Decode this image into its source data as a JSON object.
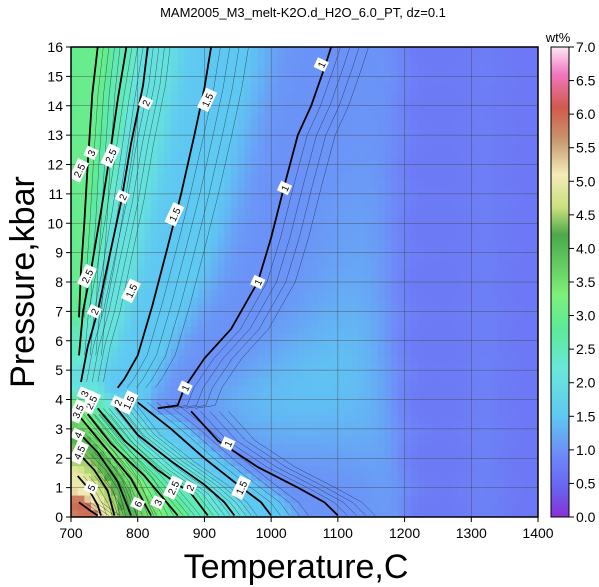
{
  "chart_data": {
    "type": "heatmap",
    "title": "MAM2005_M3_melt-K2O.d_H2O_6.0_PT, dz=0.1",
    "xlabel": "Temperature,C",
    "ylabel": "Pressure,kbar",
    "xlim": [
      700,
      1400
    ],
    "ylim": [
      0,
      16
    ],
    "xticks": [
      700,
      800,
      900,
      1000,
      1100,
      1200,
      1300,
      1400
    ],
    "yticks": [
      0,
      1,
      2,
      3,
      4,
      5,
      6,
      7,
      8,
      9,
      10,
      11,
      12,
      13,
      14,
      15,
      16
    ],
    "grid": true,
    "colorbar": {
      "label": "wt%",
      "range": [
        0,
        7
      ],
      "ticks": [
        "0.0",
        "0.5",
        "1.0",
        "1.5",
        "2.0",
        "2.5",
        "3.0",
        "3.5",
        "4.0",
        "4.5",
        "5.0",
        "5.5",
        "6.0",
        "6.5",
        "7.0"
      ],
      "stops": [
        {
          "v": 0.0,
          "c": "#8b2fd8"
        },
        {
          "v": 0.4,
          "c": "#6a60f0"
        },
        {
          "v": 0.9,
          "c": "#6e88f8"
        },
        {
          "v": 1.5,
          "c": "#5fc8f2"
        },
        {
          "v": 2.2,
          "c": "#68e8d8"
        },
        {
          "v": 2.8,
          "c": "#5cea98"
        },
        {
          "v": 3.3,
          "c": "#7df07a"
        },
        {
          "v": 4.2,
          "c": "#4ba84a"
        },
        {
          "v": 4.6,
          "c": "#c8e07c"
        },
        {
          "v": 5.1,
          "c": "#f4ecb8"
        },
        {
          "v": 5.6,
          "c": "#c89a6e"
        },
        {
          "v": 6.1,
          "c": "#d2584c"
        },
        {
          "v": 6.6,
          "c": "#f078c0"
        },
        {
          "v": 7.0,
          "c": "#fde6f6"
        }
      ]
    },
    "labeled_contours": [
      {
        "level": 1,
        "label": "1",
        "points": [
          [
            1090,
            16
          ],
          [
            1080,
            15.3
          ],
          [
            1060,
            14
          ],
          [
            1040,
            13
          ],
          [
            1020,
            11.3
          ],
          [
            1000,
            9.5
          ],
          [
            980,
            8
          ],
          [
            940,
            6.4
          ],
          [
            900,
            5.4
          ],
          [
            870,
            4.4
          ],
          [
            860,
            3.8
          ],
          [
            830,
            3.7
          ]
        ]
      },
      {
        "level": 1,
        "label": "1",
        "points": [
          [
            880,
            3.6
          ],
          [
            920,
            2.6
          ],
          [
            980,
            1.7
          ],
          [
            1040,
            1.0
          ],
          [
            1080,
            0.5
          ],
          [
            1100,
            0.05
          ]
        ]
      },
      {
        "level": 1.5,
        "label": "1.5",
        "points": [
          [
            910,
            16
          ],
          [
            900,
            14.6
          ],
          [
            885,
            13
          ],
          [
            865,
            11
          ],
          [
            845,
            9.2
          ],
          [
            822,
            7.2
          ],
          [
            800,
            5.5
          ],
          [
            780,
            4.7
          ],
          [
            770,
            4.4
          ]
        ]
      },
      {
        "level": 1.5,
        "label": "1.5",
        "points": [
          [
            800,
            3.9
          ],
          [
            850,
            3.0
          ],
          [
            900,
            2.0
          ],
          [
            950,
            1.1
          ],
          [
            985,
            0.5
          ],
          [
            1000,
            0.05
          ]
        ]
      },
      {
        "level": 2,
        "label": "2",
        "points": [
          [
            815,
            16
          ],
          [
            808,
            14.7
          ],
          [
            790,
            12.7
          ],
          [
            775,
            10.7
          ],
          [
            755,
            8.6
          ],
          [
            740,
            7.0
          ],
          [
            725,
            5.8
          ],
          [
            715,
            4.6
          ]
        ]
      },
      {
        "level": 2,
        "label": "2",
        "points": [
          [
            765,
            3.8
          ],
          [
            800,
            2.8
          ],
          [
            850,
            1.9
          ],
          [
            900,
            1.1
          ],
          [
            930,
            0.5
          ],
          [
            945,
            0.05
          ]
        ]
      },
      {
        "level": 2.5,
        "label": "2.5",
        "points": [
          [
            783,
            16
          ],
          [
            770,
            14.2
          ],
          [
            758,
            12.3
          ],
          [
            745,
            10.4
          ],
          [
            730,
            8.4
          ],
          [
            718,
            7.0
          ],
          [
            712,
            5.5
          ]
        ]
      },
      {
        "level": 2.5,
        "label": "2.5",
        "points": [
          [
            740,
            3.7
          ],
          [
            780,
            2.6
          ],
          [
            830,
            1.6
          ],
          [
            880,
            0.8
          ],
          [
            905,
            0.05
          ]
        ]
      },
      {
        "level": 3,
        "label": "3",
        "points": [
          [
            740,
            16
          ],
          [
            732,
            14.4
          ],
          [
            728,
            13.0
          ],
          [
            725,
            12.0
          ],
          [
            720,
            10.0
          ],
          [
            715,
            8.4
          ],
          [
            712,
            6.8
          ]
        ]
      },
      {
        "level": 3,
        "label": "3",
        "points": [
          [
            725,
            3.5
          ],
          [
            760,
            2.5
          ],
          [
            810,
            1.4
          ],
          [
            860,
            0.05
          ]
        ]
      },
      {
        "level": 3.5,
        "label": "3.5",
        "points": [
          [
            710,
            3.5
          ],
          [
            750,
            2.4
          ],
          [
            790,
            1.3
          ],
          [
            820,
            0.05
          ]
        ]
      },
      {
        "level": 4,
        "label": "4",
        "points": [
          [
            710,
            2.9
          ],
          [
            740,
            2.2
          ],
          [
            770,
            1.2
          ],
          [
            790,
            0.05
          ]
        ]
      },
      {
        "level": 4.5,
        "label": "4.5",
        "points": [
          [
            710,
            2.2
          ],
          [
            735,
            1.6
          ],
          [
            755,
            0.9
          ],
          [
            765,
            0.05
          ]
        ]
      },
      {
        "level": 5,
        "label": "5",
        "points": [
          [
            710,
            1.4
          ],
          [
            725,
            1.0
          ],
          [
            740,
            0.4
          ],
          [
            745,
            0.05
          ]
        ]
      },
      {
        "level": 6,
        "label": "6",
        "points": [
          [
            712,
            0.5
          ],
          [
            730,
            0.2
          ],
          [
            740,
            0.05
          ]
        ]
      }
    ],
    "contour_labels": [
      {
        "text": "1",
        "x": 1075,
        "y": 15.4
      },
      {
        "text": "1",
        "x": 1020,
        "y": 11.2
      },
      {
        "text": "1",
        "x": 980,
        "y": 8.0
      },
      {
        "text": "1",
        "x": 871,
        "y": 4.4
      },
      {
        "text": "1",
        "x": 935,
        "y": 2.5
      },
      {
        "text": "1.5",
        "x": 904,
        "y": 14.2
      },
      {
        "text": "1.5",
        "x": 855,
        "y": 10.3
      },
      {
        "text": "1.5",
        "x": 790,
        "y": 7.7
      },
      {
        "text": "1.5",
        "x": 786,
        "y": 3.9
      },
      {
        "text": "1.5",
        "x": 955,
        "y": 1.0
      },
      {
        "text": "2",
        "x": 812,
        "y": 14.1
      },
      {
        "text": "2",
        "x": 777,
        "y": 10.9
      },
      {
        "text": "2",
        "x": 735,
        "y": 7.0
      },
      {
        "text": "2",
        "x": 770,
        "y": 3.9
      },
      {
        "text": "2",
        "x": 878,
        "y": 1.0
      },
      {
        "text": "2.5",
        "x": 759,
        "y": 12.3
      },
      {
        "text": "2.5",
        "x": 724,
        "y": 8.2
      },
      {
        "text": "2.5",
        "x": 730,
        "y": 3.9
      },
      {
        "text": "2.5",
        "x": 853,
        "y": 1.0
      },
      {
        "text": "2.5",
        "x": 712,
        "y": 11.8
      },
      {
        "text": "3",
        "x": 730,
        "y": 12.4
      },
      {
        "text": "3",
        "x": 720,
        "y": 4.2
      },
      {
        "text": "3",
        "x": 830,
        "y": 0.5
      },
      {
        "text": "3.5",
        "x": 710,
        "y": 3.6
      },
      {
        "text": "4",
        "x": 710,
        "y": 2.8
      },
      {
        "text": "4.5",
        "x": 712,
        "y": 2.2
      },
      {
        "text": "5",
        "x": 730,
        "y": 1.0
      },
      {
        "text": "6",
        "x": 800,
        "y": 0.45
      }
    ],
    "faint_contour_spacing": 0.1,
    "interval_for_labels": 0.5
  }
}
